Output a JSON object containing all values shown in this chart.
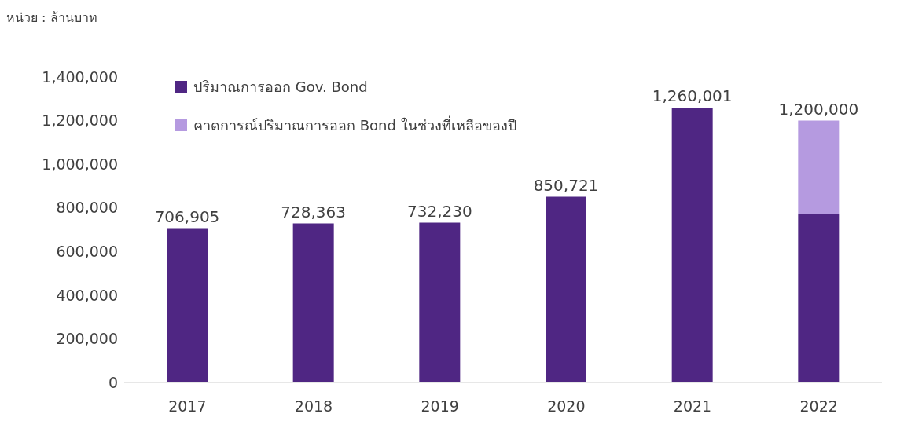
{
  "chart_data": {
    "type": "bar",
    "annotations": [
      "หน่วย : ล้านบาท"
    ],
    "categories": [
      "2017",
      "2018",
      "2019",
      "2020",
      "2021",
      "2022"
    ],
    "stacked": true,
    "series": [
      {
        "name": "ปริมาณการออก Gov. Bond",
        "color": "#4f2683",
        "values": [
          706905,
          728363,
          732230,
          850721,
          1260001,
          770000
        ]
      },
      {
        "name": "คาดการณ์ปริมาณการออก Bond ในช่วงที่เหลือของปี",
        "color": "#b59ae0",
        "values": [
          null,
          null,
          null,
          null,
          null,
          430000
        ]
      }
    ],
    "totals": [
      "706,905",
      "728,363",
      "732,230",
      "850,721",
      "1,260,001",
      "1,200,000"
    ],
    "ylim": [
      0,
      1400000
    ],
    "yticks": [
      0,
      {
        "value": 200000,
        "label": "200,000"
      },
      {
        "value": 400000,
        "label": "400,000"
      },
      {
        "value": 600000,
        "label": "600,000"
      },
      {
        "value": 800000,
        "label": "800,000"
      },
      {
        "value": 1000000,
        "label": "1,000,000"
      },
      {
        "value": 1200000,
        "label": "1,200,000"
      },
      {
        "value": 1400000,
        "label": "1,400,000"
      }
    ],
    "grid": false,
    "legend": "top left"
  }
}
